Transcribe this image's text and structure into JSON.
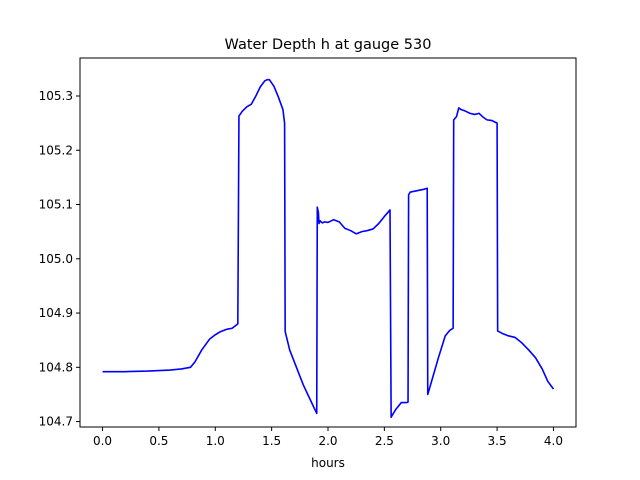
{
  "chart_data": {
    "type": "line",
    "title": "Water Depth h at gauge 530",
    "xlabel": "hours",
    "ylabel": "",
    "xlim": [
      -0.2,
      4.2
    ],
    "ylim": [
      104.69,
      105.37
    ],
    "xticks": [
      0.0,
      0.5,
      1.0,
      1.5,
      2.0,
      2.5,
      3.0,
      3.5,
      4.0
    ],
    "xtick_labels": [
      "0.0",
      "0.5",
      "1.0",
      "1.5",
      "2.0",
      "2.5",
      "3.0",
      "3.5",
      "4.0"
    ],
    "yticks": [
      104.7,
      104.8,
      104.9,
      105.0,
      105.1,
      105.2,
      105.3
    ],
    "ytick_labels": [
      "104.7",
      "104.8",
      "104.9",
      "105.0",
      "105.1",
      "105.2",
      "105.3"
    ],
    "grid": false,
    "legend": "none",
    "series": [
      {
        "color": "#0000ff",
        "x": [
          0.0,
          0.2,
          0.4,
          0.6,
          0.7,
          0.78,
          0.82,
          0.88,
          0.95,
          1.0,
          1.05,
          1.1,
          1.15,
          1.2,
          1.21,
          1.24,
          1.28,
          1.32,
          1.36,
          1.4,
          1.44,
          1.46,
          1.48,
          1.52,
          1.56,
          1.6,
          1.615,
          1.62,
          1.66,
          1.72,
          1.78,
          1.85,
          1.9,
          1.905,
          1.915,
          1.92,
          1.93,
          1.95,
          1.97,
          2.0,
          2.05,
          2.1,
          2.15,
          2.2,
          2.25,
          2.3,
          2.35,
          2.4,
          2.45,
          2.5,
          2.55,
          2.56,
          2.565,
          2.6,
          2.65,
          2.7,
          2.71,
          2.715,
          2.73,
          2.78,
          2.85,
          2.88,
          2.885,
          2.92,
          2.98,
          3.04,
          3.08,
          3.11,
          3.115,
          3.14,
          3.16,
          3.18,
          3.22,
          3.26,
          3.3,
          3.34,
          3.37,
          3.41,
          3.45,
          3.5,
          3.505,
          3.55,
          3.6,
          3.66,
          3.72,
          3.78,
          3.84,
          3.9,
          3.95,
          4.0
        ],
        "y": [
          104.792,
          104.792,
          104.793,
          104.795,
          104.797,
          104.8,
          104.81,
          104.832,
          104.852,
          104.86,
          104.866,
          104.87,
          104.872,
          104.88,
          105.263,
          105.272,
          105.28,
          105.285,
          105.3,
          105.317,
          105.328,
          105.33,
          105.33,
          105.318,
          105.298,
          105.275,
          105.25,
          104.866,
          104.832,
          104.8,
          104.768,
          104.737,
          104.715,
          105.095,
          105.085,
          105.065,
          105.07,
          105.066,
          105.068,
          105.067,
          105.072,
          105.068,
          105.056,
          105.052,
          105.046,
          105.05,
          105.052,
          105.055,
          105.065,
          105.078,
          105.09,
          104.708,
          104.71,
          104.722,
          104.735,
          104.735,
          104.736,
          105.118,
          105.123,
          105.125,
          105.128,
          105.13,
          104.75,
          104.775,
          104.818,
          104.858,
          104.868,
          104.872,
          105.256,
          105.262,
          105.278,
          105.275,
          105.272,
          105.268,
          105.266,
          105.268,
          105.262,
          105.256,
          105.255,
          105.25,
          104.867,
          104.862,
          104.858,
          104.855,
          104.845,
          104.832,
          104.818,
          104.797,
          104.774,
          104.76
        ]
      }
    ]
  }
}
